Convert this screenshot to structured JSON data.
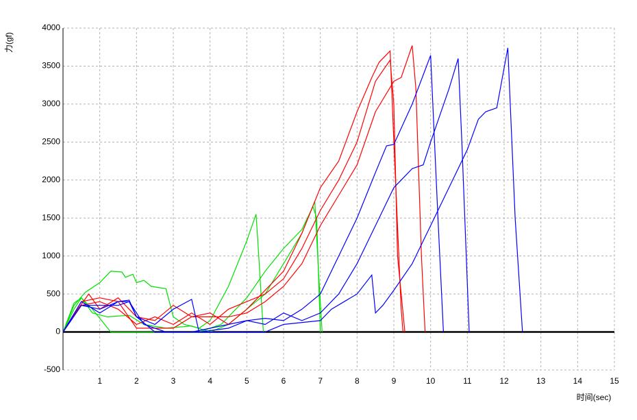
{
  "chart_data": {
    "type": "line",
    "x_label": "时间(sec)",
    "y_label": "力(gf)",
    "xlim": [
      0,
      15
    ],
    "xticks": [
      1,
      2,
      3,
      4,
      5,
      6,
      7,
      8,
      9,
      10,
      11,
      12,
      13,
      14,
      15
    ],
    "ylim": [
      -500,
      4000
    ],
    "yticks": [
      -500,
      0,
      500,
      1000,
      1500,
      2000,
      2500,
      3000,
      3500,
      4000
    ],
    "grid": true,
    "series": [
      {
        "color": "#00e000",
        "x": [
          0,
          0.3,
          0.6,
          1.0,
          1.3,
          1.6,
          1.7,
          1.9,
          2.0,
          2.2,
          2.4,
          2.8,
          3.0,
          3.3,
          3.7,
          4.0,
          4.5,
          5.0,
          5.25,
          5.3,
          5.45
        ],
        "values": [
          0,
          350,
          520,
          650,
          800,
          790,
          720,
          760,
          650,
          680,
          600,
          570,
          200,
          100,
          50,
          150,
          600,
          1200,
          1550,
          1200,
          0
        ]
      },
      {
        "color": "#00e000",
        "x": [
          0,
          0.3,
          0.5,
          0.8,
          1.2,
          1.8,
          2.2,
          2.8,
          3.5,
          4.0,
          4.5,
          5.0,
          5.5,
          6.0,
          6.5,
          6.85,
          6.95,
          7.05
        ],
        "values": [
          0,
          380,
          450,
          250,
          200,
          220,
          100,
          50,
          80,
          0,
          100,
          300,
          500,
          900,
          1300,
          1720,
          800,
          0
        ]
      },
      {
        "color": "#00e000",
        "x": [
          0,
          0.3,
          0.5,
          0.8,
          1.3,
          2.5,
          3.7,
          4.3,
          5.0,
          5.5,
          6.0,
          6.5,
          6.8,
          6.9,
          7.0
        ],
        "values": [
          0,
          300,
          450,
          300,
          0,
          0,
          0,
          100,
          450,
          800,
          1100,
          1350,
          1650,
          1500,
          0
        ]
      },
      {
        "color": "#ff0000",
        "x": [
          0,
          0.4,
          0.7,
          1.0,
          1.5,
          2.0,
          2.5,
          3.0,
          3.5,
          4.0,
          4.5,
          5.0,
          5.5,
          6.0,
          6.5,
          7.0,
          7.5,
          8.0,
          8.4,
          8.6,
          8.9,
          9.0,
          9.2,
          9.25
        ],
        "values": [
          0,
          300,
          500,
          300,
          450,
          200,
          150,
          350,
          200,
          250,
          100,
          300,
          550,
          800,
          1300,
          1900,
          2250,
          2900,
          3350,
          3550,
          3700,
          2500,
          300,
          0
        ]
      },
      {
        "color": "#ff0000",
        "x": [
          0,
          0.5,
          1.0,
          1.5,
          2.0,
          2.5,
          3.0,
          3.5,
          4.0,
          4.5,
          5.0,
          5.5,
          6.0,
          6.5,
          7.0,
          7.5,
          8.0,
          8.5,
          8.9,
          9.0,
          9.1,
          9.3
        ],
        "values": [
          0,
          350,
          400,
          300,
          100,
          200,
          100,
          250,
          100,
          300,
          400,
          500,
          700,
          1100,
          1600,
          2000,
          2500,
          3300,
          3580,
          3000,
          1000,
          0
        ]
      },
      {
        "color": "#ff0000",
        "x": [
          0,
          0.5,
          1.0,
          1.5,
          2.0,
          3.0,
          3.5,
          4.0,
          4.5,
          5.0,
          5.5,
          6.0,
          6.5,
          7.0,
          7.5,
          8.0,
          8.5,
          9.0,
          9.2,
          9.5,
          9.6,
          9.75,
          9.85
        ],
        "values": [
          0,
          400,
          450,
          400,
          50,
          50,
          200,
          200,
          200,
          250,
          400,
          600,
          900,
          1400,
          1800,
          2200,
          2900,
          3300,
          3350,
          3770,
          3200,
          1000,
          0
        ]
      },
      {
        "color": "#0000ff",
        "x": [
          0,
          0.5,
          1.0,
          1.5,
          1.8,
          2.0,
          2.5,
          3.0,
          3.5,
          3.7,
          4.5,
          5.0,
          5.5,
          6.0,
          6.5,
          7.0,
          7.5,
          8.0,
          8.5,
          8.8,
          9.0,
          9.5,
          10.0,
          10.2,
          10.35
        ],
        "values": [
          0,
          400,
          250,
          400,
          400,
          200,
          100,
          300,
          430,
          0,
          50,
          150,
          180,
          150,
          300,
          500,
          1000,
          1500,
          2100,
          2450,
          2470,
          3000,
          3640,
          1500,
          0
        ]
      },
      {
        "color": "#0000ff",
        "x": [
          0,
          0.5,
          1.0,
          1.5,
          1.8,
          2.2,
          2.8,
          3.5,
          4.5,
          5.0,
          5.5,
          6.0,
          6.5,
          7.0,
          7.5,
          8.0,
          8.5,
          9.0,
          9.5,
          9.8,
          10.0,
          10.5,
          10.75,
          10.85,
          11.05
        ],
        "values": [
          0,
          350,
          350,
          350,
          400,
          100,
          0,
          0,
          100,
          150,
          100,
          250,
          150,
          250,
          500,
          900,
          1400,
          1900,
          2150,
          2200,
          2500,
          3200,
          3600,
          2500,
          0
        ]
      },
      {
        "color": "#0000ff",
        "x": [
          0,
          0.5,
          1.0,
          1.5,
          1.8,
          2.0,
          2.5,
          3.5,
          5.5,
          6.0,
          7.0,
          7.3,
          8.0,
          8.4,
          8.5,
          8.7,
          9.0,
          9.5,
          10.0,
          10.5,
          11.0,
          11.3,
          11.5,
          11.8,
          12.1,
          12.3,
          12.5
        ],
        "values": [
          0,
          350,
          300,
          400,
          420,
          200,
          0,
          0,
          0,
          100,
          150,
          300,
          500,
          750,
          250,
          350,
          550,
          900,
          1400,
          1900,
          2400,
          2800,
          2900,
          2950,
          3740,
          1500,
          0
        ]
      }
    ]
  }
}
